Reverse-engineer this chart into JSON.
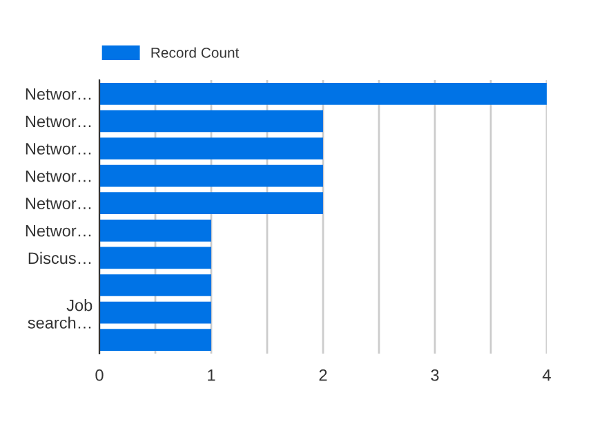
{
  "chart_data": {
    "type": "bar",
    "orientation": "horizontal",
    "categories": [
      "Networ…",
      "Networ…",
      "Networ…",
      "Networ…",
      "Networ…",
      "Networ…",
      "Discus…",
      null,
      "Job\nsearch…",
      null
    ],
    "series": [
      {
        "name": "Record Count",
        "color": "#0073e6",
        "values": [
          4,
          2,
          2,
          2,
          2,
          1,
          1,
          1,
          1,
          1
        ]
      }
    ],
    "xlim": [
      0,
      4
    ],
    "xticks": [
      0,
      {
        "value": 0.5,
        "label": null
      },
      1,
      {
        "value": 1.5,
        "label": null
      },
      2,
      {
        "value": 2.5,
        "label": null
      },
      3,
      {
        "value": 3.5,
        "label": null
      },
      4
    ],
    "grid": "x",
    "legend": "top left"
  }
}
